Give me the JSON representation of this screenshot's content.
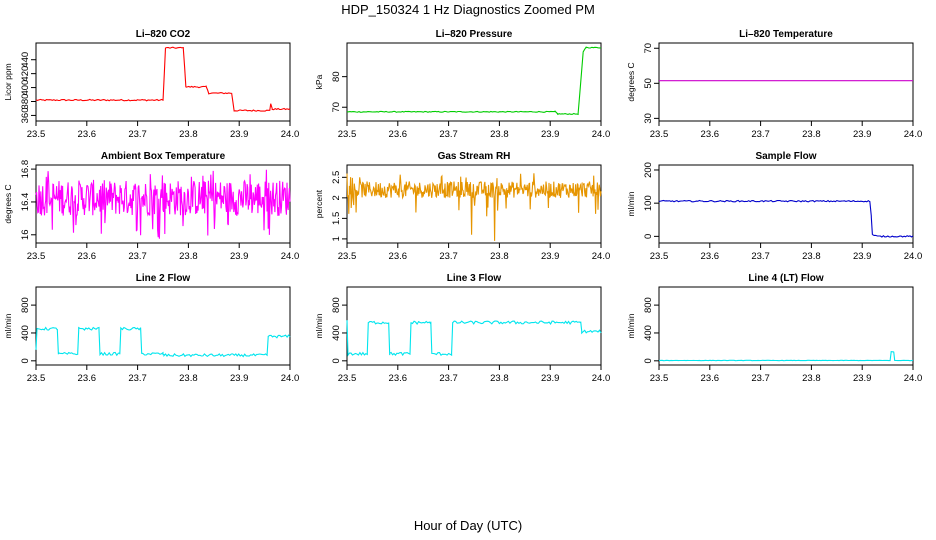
{
  "page": {
    "title": "HDP_150324  1 Hz Diagnostics Zoomed PM",
    "x_title": "Hour of Day (UTC)"
  },
  "chart_data": [
    {
      "type": "line",
      "title": "Li–820 CO2",
      "ylabel": "Licor ppm",
      "xlim": [
        23.5,
        24.0
      ],
      "ylim": [
        352,
        464
      ],
      "x_ticks": [
        "23.5",
        "23.6",
        "23.7",
        "23.8",
        "23.9",
        "24.0"
      ],
      "y_ticks": [
        360,
        380,
        400,
        420,
        440
      ],
      "color": "#ff0000",
      "style": "step",
      "noise": 1,
      "series": [
        {
          "points": [
            [
              23.5,
              382
            ],
            [
              23.75,
              382
            ],
            [
              23.755,
              457
            ],
            [
              23.79,
              457
            ],
            [
              23.795,
              401
            ],
            [
              23.835,
              401
            ],
            [
              23.84,
              392
            ],
            [
              23.885,
              392
            ],
            [
              23.89,
              367
            ],
            [
              23.96,
              367
            ],
            [
              23.962,
              377
            ],
            [
              23.965,
              369
            ],
            [
              24.0,
              369
            ]
          ]
        }
      ]
    },
    {
      "type": "line",
      "title": "Li–820 Pressure",
      "ylabel": "kPa",
      "xlim": [
        23.5,
        24.0
      ],
      "ylim": [
        65.5,
        91
      ],
      "x_ticks": [
        "23.5",
        "23.6",
        "23.7",
        "23.8",
        "23.9",
        "24.0"
      ],
      "y_ticks": [
        70,
        80
      ],
      "color": "#00cc00",
      "style": "step",
      "noise": 0.15,
      "series": [
        {
          "points": [
            [
              23.5,
              68.5
            ],
            [
              23.91,
              68.5
            ],
            [
              23.915,
              67.8
            ],
            [
              23.955,
              67.8
            ],
            [
              23.965,
              88
            ],
            [
              23.97,
              89.5
            ],
            [
              24.0,
              89.5
            ]
          ]
        }
      ]
    },
    {
      "type": "line",
      "title": "Li–820 Temperature",
      "ylabel": "degrees C",
      "xlim": [
        23.5,
        24.0
      ],
      "ylim": [
        28.5,
        73
      ],
      "x_ticks": [
        "23.5",
        "23.6",
        "23.7",
        "23.8",
        "23.9",
        "24.0"
      ],
      "y_ticks": [
        30,
        50,
        70
      ],
      "color": "#cc00cc",
      "style": "step",
      "noise": 0,
      "series": [
        {
          "points": [
            [
              23.5,
              51.5
            ],
            [
              24.0,
              51.5
            ]
          ]
        }
      ]
    },
    {
      "type": "line",
      "title": "Ambient Box Temperature",
      "ylabel": "degrees C",
      "xlim": [
        23.5,
        24.0
      ],
      "ylim": [
        15.9,
        16.85
      ],
      "x_ticks": [
        "23.5",
        "23.6",
        "23.7",
        "23.8",
        "23.9",
        "24.0"
      ],
      "y_ticks": [
        16.0,
        16.4,
        16.8
      ],
      "color": "#ff00ff",
      "style": "band",
      "noise": 0,
      "series": [
        {
          "band": {
            "center": 16.45,
            "half": 0.22,
            "spikes_low": 15.95,
            "spikes_high": 16.8
          }
        }
      ]
    },
    {
      "type": "line",
      "title": "Gas Stream RH",
      "ylabel": "percent",
      "xlim": [
        23.5,
        24.0
      ],
      "ylim": [
        0.9,
        2.8
      ],
      "x_ticks": [
        "23.5",
        "23.6",
        "23.7",
        "23.8",
        "23.9",
        "24.0"
      ],
      "y_ticks": [
        1.0,
        1.5,
        2.0,
        2.5
      ],
      "color": "#e69500",
      "style": "band",
      "noise": 0,
      "series": [
        {
          "band": {
            "center": 2.2,
            "half": 0.2,
            "spikes_low": 1.6,
            "spikes_high": 2.6,
            "dips": [
              [
                23.745,
                1.1
              ],
              [
                23.79,
                0.95
              ],
              [
                23.775,
                1.55
              ],
              [
                23.72,
                1.7
              ]
            ]
          }
        }
      ]
    },
    {
      "type": "line",
      "title": "Sample Flow",
      "ylabel": "ml/min",
      "xlim": [
        23.5,
        24.0
      ],
      "ylim": [
        -20,
        215
      ],
      "x_ticks": [
        "23.5",
        "23.6",
        "23.7",
        "23.8",
        "23.9",
        "24.0"
      ],
      "y_ticks": [
        0,
        100,
        200
      ],
      "color": "#0000cc",
      "style": "step",
      "noise": 2,
      "series": [
        {
          "points": [
            [
              23.5,
              106
            ],
            [
              23.915,
              106
            ],
            [
              23.918,
              60
            ],
            [
              23.92,
              5
            ],
            [
              23.93,
              0
            ],
            [
              24.0,
              0
            ]
          ]
        }
      ]
    },
    {
      "type": "line",
      "title": "Line 2 Flow",
      "ylabel": "ml/min",
      "xlim": [
        23.5,
        24.0
      ],
      "ylim": [
        -60,
        1060
      ],
      "x_ticks": [
        "23.5",
        "23.6",
        "23.7",
        "23.8",
        "23.9",
        "24.0"
      ],
      "y_ticks": [
        0,
        400,
        800
      ],
      "color": "#00e5ee",
      "style": "step",
      "noise": 20,
      "series": [
        {
          "points": [
            [
              23.5,
              140
            ],
            [
              23.502,
              460
            ],
            [
              23.542,
              460
            ],
            [
              23.544,
              100
            ],
            [
              23.582,
              100
            ],
            [
              23.584,
              460
            ],
            [
              23.624,
              460
            ],
            [
              23.626,
              100
            ],
            [
              23.665,
              100
            ],
            [
              23.667,
              460
            ],
            [
              23.706,
              460
            ],
            [
              23.708,
              100
            ],
            [
              23.75,
              100
            ],
            [
              23.752,
              80
            ],
            [
              23.955,
              80
            ],
            [
              23.957,
              350
            ],
            [
              24.0,
              350
            ]
          ]
        }
      ]
    },
    {
      "type": "line",
      "title": "Line 3 Flow",
      "ylabel": "ml/min",
      "xlim": [
        23.5,
        24.0
      ],
      "ylim": [
        -60,
        1060
      ],
      "x_ticks": [
        "23.5",
        "23.6",
        "23.7",
        "23.8",
        "23.9",
        "24.0"
      ],
      "y_ticks": [
        0,
        400,
        800
      ],
      "color": "#00e5ee",
      "style": "step",
      "noise": 22,
      "series": [
        {
          "points": [
            [
              23.5,
              570
            ],
            [
              23.502,
              100
            ],
            [
              23.54,
              100
            ],
            [
              23.542,
              550
            ],
            [
              23.582,
              550
            ],
            [
              23.584,
              100
            ],
            [
              23.624,
              100
            ],
            [
              23.626,
              550
            ],
            [
              23.665,
              550
            ],
            [
              23.667,
              100
            ],
            [
              23.706,
              100
            ],
            [
              23.708,
              550
            ],
            [
              23.96,
              550
            ],
            [
              23.962,
              420
            ],
            [
              24.0,
              420
            ]
          ]
        }
      ]
    },
    {
      "type": "line",
      "title": "Line 4 (LT) Flow",
      "ylabel": "ml/min",
      "xlim": [
        23.5,
        24.0
      ],
      "ylim": [
        -60,
        1060
      ],
      "x_ticks": [
        "23.5",
        "23.6",
        "23.7",
        "23.8",
        "23.9",
        "24.0"
      ],
      "y_ticks": [
        0,
        400,
        800
      ],
      "color": "#00e5ee",
      "style": "step",
      "noise": 3,
      "series": [
        {
          "points": [
            [
              23.5,
              5
            ],
            [
              23.955,
              5
            ],
            [
              23.957,
              130
            ],
            [
              23.962,
              130
            ],
            [
              23.964,
              5
            ],
            [
              24.0,
              5
            ]
          ]
        }
      ]
    }
  ]
}
